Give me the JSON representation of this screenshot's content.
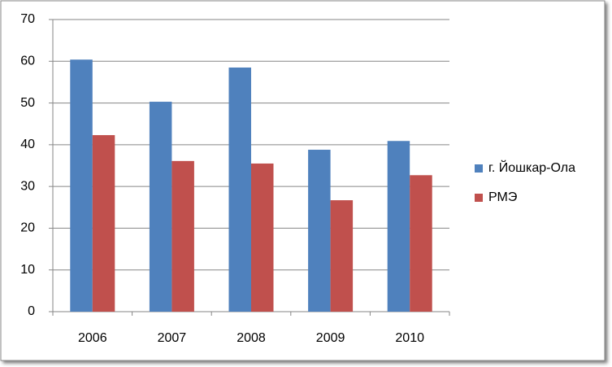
{
  "chart_data": {
    "type": "bar",
    "categories": [
      "2006",
      "2007",
      "2008",
      "2009",
      "2010"
    ],
    "series": [
      {
        "name": "г. Йошкар-Ола",
        "color": "#4f81bd",
        "values": [
          60.4,
          50.3,
          58.5,
          38.8,
          40.9
        ]
      },
      {
        "name": "РМЭ",
        "color": "#c0504d",
        "values": [
          42.3,
          36.1,
          35.5,
          26.7,
          32.7
        ]
      }
    ],
    "ylim": [
      0,
      70
    ],
    "yticks": [
      0,
      10,
      20,
      30,
      40,
      50,
      60,
      70
    ],
    "grid": true,
    "legend": "right"
  }
}
